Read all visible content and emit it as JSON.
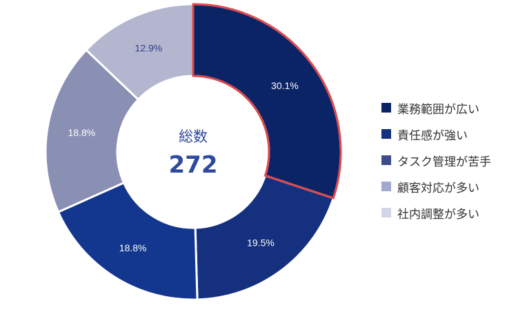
{
  "chart_data": {
    "type": "pie",
    "style": "donut",
    "center": {
      "title": "総数",
      "value": "272"
    },
    "legend_position": "right",
    "slices": [
      {
        "label": "業務範囲が広い",
        "value": 30.1,
        "value_label": "30.1%",
        "color": "#0b2465",
        "label_color": "#ffffff",
        "highlighted": true
      },
      {
        "label": "責任感が強い",
        "value": 19.5,
        "value_label": "19.5%",
        "color": "#14307e",
        "label_color": "#ffffff",
        "highlighted": false
      },
      {
        "label": "タスク管理が苦手",
        "value": 18.8,
        "value_label": "18.8%",
        "color": "#13368e",
        "label_color": "#ffffff",
        "highlighted": false
      },
      {
        "label": "顧客対応が多い",
        "value": 18.8,
        "value_label": "18.8%",
        "color": "#8a8fb4",
        "label_color": "#ffffff",
        "highlighted": false
      },
      {
        "label": "社内調整が多い",
        "value": 12.9,
        "value_label": "12.9%",
        "color": "#b4b6d0",
        "label_color": "#2b3f8a",
        "highlighted": false
      }
    ],
    "legend": [
      {
        "label": "業務範囲が広い",
        "color": "#0b2465"
      },
      {
        "label": "責任感が強い",
        "color": "#14307e"
      },
      {
        "label": "タスク管理が苦手",
        "color": "#3d4a8c"
      },
      {
        "label": "顧客対応が多い",
        "color": "#a3a8cf"
      },
      {
        "label": "社内調整が多い",
        "color": "#d3d5e7"
      }
    ],
    "highlight_color": "#e0474c"
  }
}
